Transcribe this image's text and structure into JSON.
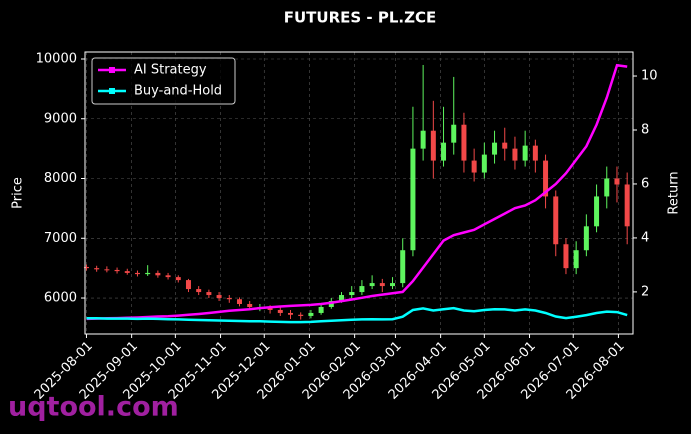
{
  "chart_data": {
    "type": "candlestick",
    "title": "FUTURES - PL.ZCE",
    "ylabel": "Price",
    "y2label": "Return",
    "x": [
      "2025-08-01",
      "2025-08-08",
      "2025-08-15",
      "2025-08-22",
      "2025-08-29",
      "2025-09-05",
      "2025-09-12",
      "2025-09-19",
      "2025-09-26",
      "2025-10-03",
      "2025-10-10",
      "2025-10-17",
      "2025-10-24",
      "2025-10-31",
      "2025-11-07",
      "2025-11-14",
      "2025-11-21",
      "2025-11-28",
      "2025-12-05",
      "2025-12-12",
      "2025-12-19",
      "2025-12-26",
      "2026-01-02",
      "2026-01-09",
      "2026-01-16",
      "2026-01-23",
      "2026-01-30",
      "2026-02-06",
      "2026-02-13",
      "2026-02-20",
      "2026-02-27",
      "2026-03-06",
      "2026-03-13",
      "2026-03-20",
      "2026-03-27",
      "2026-04-03",
      "2026-04-10",
      "2026-04-17",
      "2026-04-24",
      "2026-05-01",
      "2026-05-08",
      "2026-05-15",
      "2026-05-22",
      "2026-05-29",
      "2026-06-05",
      "2026-06-12",
      "2026-06-19",
      "2026-06-26",
      "2026-07-03",
      "2026-07-10",
      "2026-07-17",
      "2026-07-24",
      "2026-07-31",
      "2026-08-07"
    ],
    "open": [
      6520,
      6500,
      6480,
      6470,
      6450,
      6420,
      6400,
      6420,
      6380,
      6350,
      6300,
      6150,
      6100,
      6050,
      6000,
      5980,
      5900,
      5850,
      5850,
      5800,
      5750,
      5720,
      5700,
      5750,
      5850,
      5950,
      6050,
      6100,
      6200,
      6250,
      6200,
      6250,
      6800,
      8500,
      8800,
      8300,
      8600,
      8900,
      8300,
      8100,
      8400,
      8600,
      8500,
      8300,
      8550,
      8300,
      7700,
      6900,
      6500,
      6800,
      7200,
      7700,
      8000,
      7900
    ],
    "high": [
      6560,
      6540,
      6530,
      6510,
      6490,
      6460,
      6550,
      6460,
      6420,
      6380,
      6320,
      6200,
      6140,
      6100,
      6050,
      6010,
      5950,
      5900,
      5880,
      5860,
      5800,
      5760,
      5800,
      5900,
      6000,
      6100,
      6200,
      6300,
      6380,
      6320,
      6350,
      7000,
      9200,
      9900,
      9300,
      9200,
      9700,
      9100,
      8500,
      8600,
      8800,
      8850,
      8700,
      8800,
      8650,
      8400,
      7800,
      7000,
      6950,
      7400,
      7900,
      8200,
      8200,
      8100
    ],
    "low": [
      6460,
      6440,
      6430,
      6410,
      6390,
      6360,
      6370,
      6340,
      6310,
      6260,
      6100,
      6050,
      6000,
      5950,
      5920,
      5860,
      5800,
      5780,
      5740,
      5700,
      5650,
      5640,
      5660,
      5720,
      5820,
      5920,
      6000,
      6050,
      6150,
      6100,
      6150,
      6180,
      6700,
      8300,
      8000,
      8200,
      8400,
      8100,
      7950,
      8000,
      8250,
      8300,
      8150,
      8200,
      8100,
      7500,
      6700,
      6400,
      6400,
      6700,
      7100,
      7500,
      7600,
      6900
    ],
    "close": [
      6500,
      6480,
      6470,
      6450,
      6420,
      6400,
      6420,
      6380,
      6350,
      6300,
      6150,
      6100,
      6050,
      6000,
      5980,
      5900,
      5850,
      5850,
      5800,
      5750,
      5720,
      5700,
      5750,
      5850,
      5950,
      6050,
      6100,
      6200,
      6250,
      6200,
      6250,
      6800,
      8500,
      8800,
      8300,
      8600,
      8900,
      8300,
      8100,
      8400,
      8600,
      8500,
      8300,
      8550,
      8300,
      7700,
      6900,
      6500,
      6800,
      7200,
      7700,
      8000,
      7900,
      7200
    ],
    "up_color": "#5ef55e",
    "down_color": "#f24848",
    "series": [
      {
        "name": "AI Strategy",
        "color": "#ff00ff",
        "axis": "y2",
        "values": [
          1.0,
          1.01,
          1.02,
          1.03,
          1.04,
          1.05,
          1.07,
          1.09,
          1.1,
          1.12,
          1.15,
          1.18,
          1.22,
          1.26,
          1.3,
          1.33,
          1.36,
          1.4,
          1.43,
          1.46,
          1.48,
          1.5,
          1.52,
          1.55,
          1.6,
          1.66,
          1.72,
          1.78,
          1.85,
          1.9,
          1.95,
          2.0,
          2.4,
          2.9,
          3.4,
          3.9,
          4.1,
          4.2,
          4.3,
          4.5,
          4.7,
          4.9,
          5.1,
          5.2,
          5.4,
          5.7,
          6.0,
          6.4,
          6.9,
          7.4,
          8.2,
          9.2,
          10.4,
          10.35
        ]
      },
      {
        "name": "Buy-and-Hold",
        "color": "#00ffff",
        "axis": "y2",
        "values": [
          1.02,
          1.02,
          1.01,
          1.01,
          1.01,
          1.0,
          1.01,
          1.0,
          0.99,
          0.98,
          0.97,
          0.96,
          0.95,
          0.94,
          0.93,
          0.92,
          0.91,
          0.91,
          0.9,
          0.89,
          0.88,
          0.88,
          0.89,
          0.91,
          0.93,
          0.95,
          0.97,
          0.98,
          0.99,
          0.98,
          0.99,
          1.08,
          1.33,
          1.39,
          1.31,
          1.36,
          1.4,
          1.31,
          1.28,
          1.33,
          1.36,
          1.35,
          1.31,
          1.35,
          1.31,
          1.22,
          1.09,
          1.03,
          1.08,
          1.14,
          1.22,
          1.27,
          1.25,
          1.14
        ]
      }
    ],
    "xlim": [
      "2025-07-31",
      "2026-08-11"
    ],
    "xticks": [
      "2025-08-01",
      "2025-09-01",
      "2025-10-01",
      "2025-11-01",
      "2025-12-01",
      "2026-01-01",
      "2026-02-01",
      "2026-03-01",
      "2026-04-01",
      "2026-05-01",
      "2026-06-01",
      "2026-07-01",
      "2026-08-01"
    ],
    "ylim": [
      5398,
      10117
    ],
    "yticks": [
      6000,
      7000,
      8000,
      9000,
      10000
    ],
    "y2lim": [
      0.44,
      10.89
    ],
    "y2ticks": [
      2,
      4,
      6,
      8,
      10
    ],
    "grid": true,
    "legend": "upper left"
  },
  "watermark": "uqtool.com"
}
